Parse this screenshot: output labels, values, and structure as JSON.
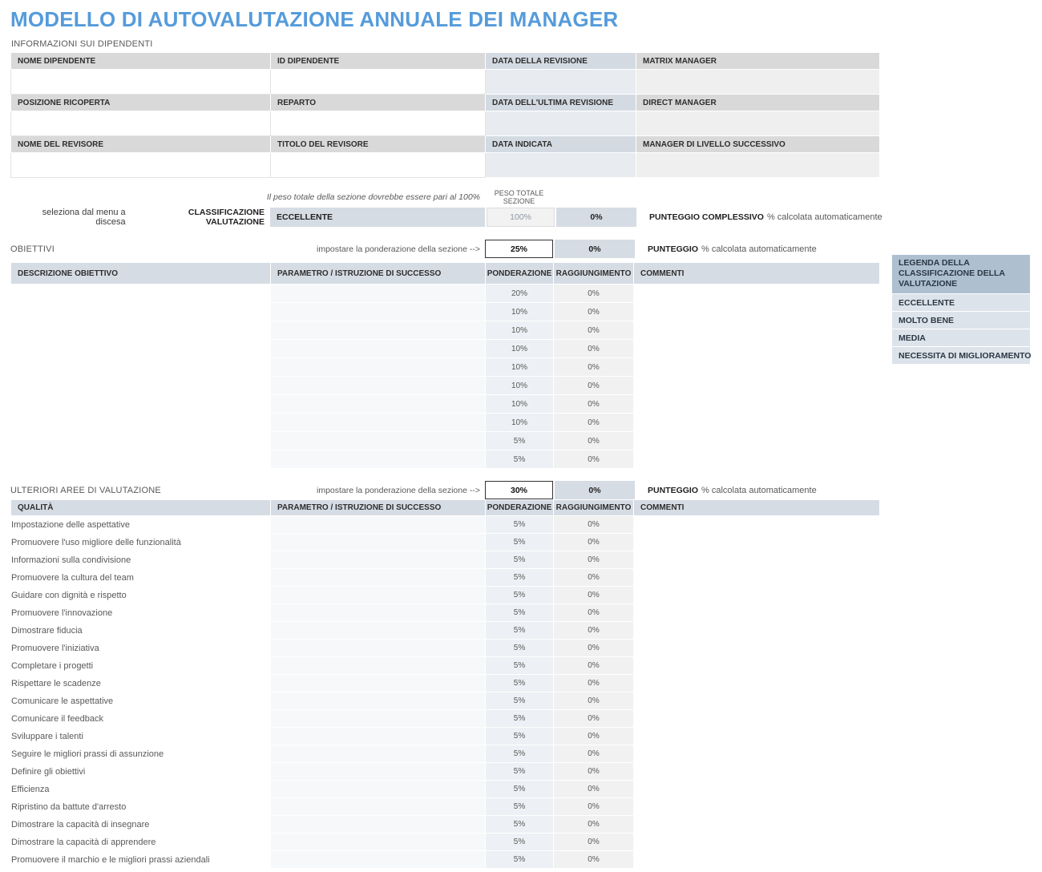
{
  "title": "MODELLO DI AUTOVALUTAZIONE ANNUALE DEI MANAGER",
  "colors": {
    "title_blue": "#559BDB",
    "header_blue_gray": "#D6DCE4",
    "header_gray": "#D9D9D9",
    "legend_header": "#AEBFD0",
    "legend_row": "#DCE3EA"
  },
  "employee_info": {
    "section_label": "INFORMAZIONI SUI DIPENDENTI",
    "rows": [
      {
        "headers": [
          "NOME DIPENDENTE",
          "ID DIPENDENTE",
          "DATA DELLA REVISIONE",
          "MATRIX MANAGER"
        ],
        "values": [
          "",
          "",
          "",
          ""
        ]
      },
      {
        "headers": [
          "POSIZIONE RICOPERTA",
          "REPARTO",
          "DATA DELL'ULTIMA REVISIONE",
          "DIRECT MANAGER"
        ],
        "values": [
          "",
          "",
          "",
          ""
        ]
      },
      {
        "headers": [
          "NOME DEL REVISORE",
          "TITOLO DEL REVISORE",
          "DATA INDICATA",
          "MANAGER DI LIVELLO SUCCESSIVO"
        ],
        "values": [
          "",
          "",
          "",
          ""
        ]
      }
    ]
  },
  "weights": {
    "note": "Il peso totale della sezione dovrebbe essere pari al 100%",
    "total_header": "PESO TOTALE SEZIONE",
    "classification": {
      "label_regular": "seleziona dal menu a discesa",
      "label_bold": "CLASSIFICAZIONE VALUTAZIONE",
      "value": "ECCELLENTE",
      "total_weight": "100%",
      "achievement": "0%",
      "score_bold": "PUNTEGGIO COMPLESSIVO",
      "score_rest": "% calcolata automaticamente"
    }
  },
  "objectives": {
    "section_label": "OBIETTIVI",
    "set_weight_label": "impostare la ponderazione della sezione -->",
    "weight": "25%",
    "achievement": "0%",
    "score_bold": "PUNTEGGIO",
    "score_rest": "% calcolata automaticamente",
    "columns": [
      "DESCRIZIONE OBIETTIVO",
      "PARAMETRO / ISTRUZIONE DI SUCCESSO",
      "PONDERAZIONE",
      "RAGGIUNGIMENTO",
      "COMMENTI"
    ],
    "rows": [
      {
        "weight": "20%",
        "achievement": "0%"
      },
      {
        "weight": "10%",
        "achievement": "0%"
      },
      {
        "weight": "10%",
        "achievement": "0%"
      },
      {
        "weight": "10%",
        "achievement": "0%"
      },
      {
        "weight": "10%",
        "achievement": "0%"
      },
      {
        "weight": "10%",
        "achievement": "0%"
      },
      {
        "weight": "10%",
        "achievement": "0%"
      },
      {
        "weight": "10%",
        "achievement": "0%"
      },
      {
        "weight": "5%",
        "achievement": "0%"
      },
      {
        "weight": "5%",
        "achievement": "0%"
      }
    ]
  },
  "legend": {
    "header": "LEGENDA DELLA CLASSIFICAZIONE DELLA VALUTAZIONE",
    "items": [
      "ECCELLENTE",
      "MOLTO BENE",
      "MEDIA",
      "NECESSITA DI MIGLIORAMENTO"
    ]
  },
  "additional": {
    "section_label": "ULTERIORI AREE DI VALUTAZIONE",
    "set_weight_label": "impostare la ponderazione della sezione -->",
    "weight": "30%",
    "achievement": "0%",
    "score_bold": "PUNTEGGIO",
    "score_rest": "% calcolata automaticamente",
    "columns": [
      "QUALITÀ",
      "PARAMETRO / ISTRUZIONE DI SUCCESSO",
      "PONDERAZIONE",
      "RAGGIUNGIMENTO",
      "COMMENTI"
    ],
    "rows": [
      {
        "quality": "Impostazione delle aspettative",
        "weight": "5%",
        "achievement": "0%"
      },
      {
        "quality": "Promuovere l'uso migliore delle funzionalità",
        "weight": "5%",
        "achievement": "0%"
      },
      {
        "quality": "Informazioni sulla condivisione",
        "weight": "5%",
        "achievement": "0%"
      },
      {
        "quality": "Promuovere la cultura del team",
        "weight": "5%",
        "achievement": "0%"
      },
      {
        "quality": "Guidare con dignità e rispetto",
        "weight": "5%",
        "achievement": "0%"
      },
      {
        "quality": "Promuovere l'innovazione",
        "weight": "5%",
        "achievement": "0%"
      },
      {
        "quality": "Dimostrare fiducia",
        "weight": "5%",
        "achievement": "0%"
      },
      {
        "quality": "Promuovere l'iniziativa",
        "weight": "5%",
        "achievement": "0%"
      },
      {
        "quality": "Completare i progetti",
        "weight": "5%",
        "achievement": "0%"
      },
      {
        "quality": "Rispettare le scadenze",
        "weight": "5%",
        "achievement": "0%"
      },
      {
        "quality": "Comunicare le aspettative",
        "weight": "5%",
        "achievement": "0%"
      },
      {
        "quality": "Comunicare il feedback",
        "weight": "5%",
        "achievement": "0%"
      },
      {
        "quality": "Sviluppare i talenti",
        "weight": "5%",
        "achievement": "0%"
      },
      {
        "quality": "Seguire le migliori prassi di assunzione",
        "weight": "5%",
        "achievement": "0%"
      },
      {
        "quality": "Definire gli obiettivi",
        "weight": "5%",
        "achievement": "0%"
      },
      {
        "quality": "Efficienza",
        "weight": "5%",
        "achievement": "0%"
      },
      {
        "quality": "Ripristino da battute d'arresto",
        "weight": "5%",
        "achievement": "0%"
      },
      {
        "quality": "Dimostrare la capacità di insegnare",
        "weight": "5%",
        "achievement": "0%"
      },
      {
        "quality": "Dimostrare la capacità di apprendere",
        "weight": "5%",
        "achievement": "0%"
      },
      {
        "quality": "Promuovere il marchio e le migliori prassi aziendali",
        "weight": "5%",
        "achievement": "0%"
      }
    ]
  }
}
